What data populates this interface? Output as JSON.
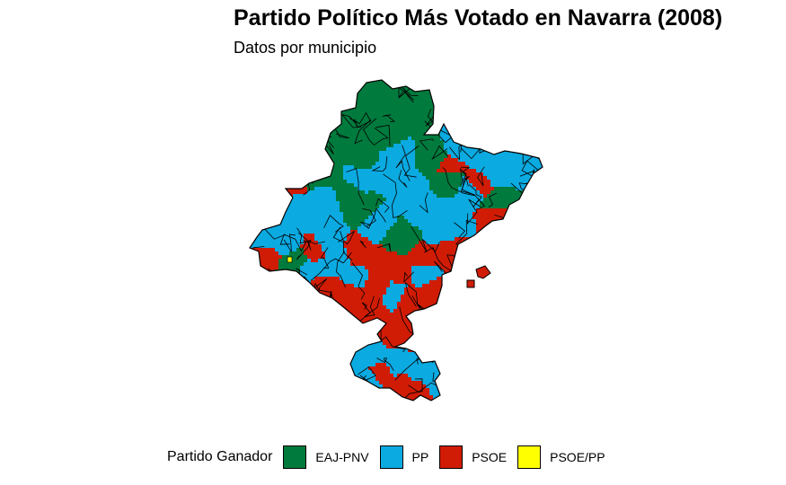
{
  "title": "Partido Político Más Votado en Navarra (2008)",
  "subtitle": "Datos por municipio",
  "legend": {
    "title": "Partido Ganador",
    "items": [
      {
        "label": "EAJ-PNV",
        "color": "#007A3D"
      },
      {
        "label": "PP",
        "color": "#0BAAE1"
      },
      {
        "label": "PSOE",
        "color": "#D01C05"
      },
      {
        "label": "PSOE/PP",
        "color": "#FFFF00"
      }
    ]
  }
}
